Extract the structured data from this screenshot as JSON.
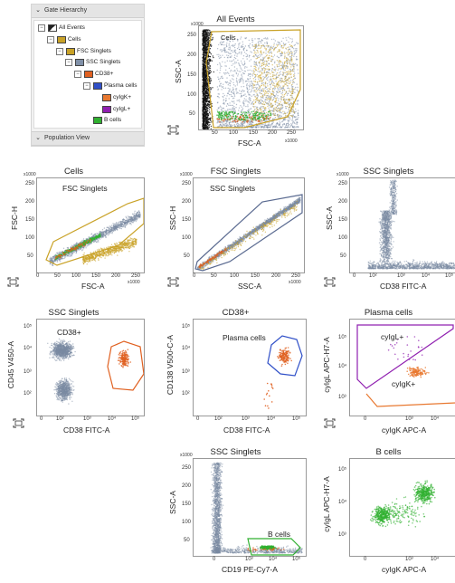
{
  "gate_hierarchy": {
    "header": "Gate Hierarchy",
    "footer": "Population View",
    "nodes": [
      {
        "label": "All Events",
        "color": "#222222",
        "depth": 0
      },
      {
        "label": "Cells",
        "color": "#c9a227",
        "depth": 1
      },
      {
        "label": "FSC Singlets",
        "color": "#c9a227",
        "depth": 2
      },
      {
        "label": "SSC Singlets",
        "color": "#8090a8",
        "depth": 3
      },
      {
        "label": "CD38+",
        "color": "#e06020",
        "depth": 4
      },
      {
        "label": "Plasma cells",
        "color": "#3050c8",
        "depth": 5
      },
      {
        "label": "cyIgK+",
        "color": "#e87830",
        "depth": 6
      },
      {
        "label": "cyIgL+",
        "color": "#9020b0",
        "depth": 6
      },
      {
        "label": "B cells",
        "color": "#30b030",
        "depth": 5
      }
    ]
  },
  "colors": {
    "events": "#7a8ba2",
    "cells": "#c9a227",
    "fsc": "#c9a227",
    "ssc": "#5a6a90",
    "cd38": "#e06020",
    "plasma": "#3050c8",
    "igl": "#9020b0",
    "igk": "#e87830",
    "bcells": "#30b030"
  },
  "plots": {
    "p1": {
      "title": "All Events",
      "xlabel": "FSC-A",
      "ylabel": "SSC-A",
      "gate": "Cells",
      "xticks": [
        "50",
        "100",
        "150",
        "200",
        "250"
      ],
      "yticks": [
        "50",
        "100",
        "150",
        "200",
        "250"
      ],
      "xmult": "x1000",
      "ymult": "x1000"
    },
    "p2": {
      "title": "Cells",
      "xlabel": "FSC-A",
      "ylabel": "FSC-H",
      "gate": "FSC Singlets",
      "xticks": [
        "0",
        "50",
        "100",
        "150",
        "200",
        "250"
      ],
      "yticks": [
        "50",
        "100",
        "150",
        "200",
        "250"
      ],
      "xmult": "x1000",
      "ymult": "x1000"
    },
    "p3": {
      "title": "FSC Singlets",
      "xlabel": "SSC-A",
      "ylabel": "SSC-H",
      "gate": "SSC Singlets",
      "xticks": [
        "0",
        "50",
        "100",
        "150",
        "200",
        "250"
      ],
      "yticks": [
        "50",
        "100",
        "150",
        "200",
        "250"
      ],
      "xmult": "x1000",
      "ymult": "x1000"
    },
    "p4": {
      "title": "SSC Singlets",
      "xlabel": "CD38 FITC-A",
      "ylabel": "SSC-A",
      "xticks": [
        "0",
        "10²",
        "10³",
        "10⁴",
        "10⁵"
      ],
      "yticks": [
        "50",
        "100",
        "150",
        "200",
        "250"
      ],
      "ymult": "x1000"
    },
    "p5": {
      "title": "SSC Singlets",
      "xlabel": "CD38 FITC-A",
      "ylabel": "CD45 V450-A",
      "gate": "CD38+",
      "xticks": [
        "0",
        "10²",
        "10³",
        "10⁴",
        "10⁵"
      ],
      "yticks": [
        "10²",
        "10³",
        "10⁴",
        "10⁵"
      ]
    },
    "p6": {
      "title": "CD38+",
      "xlabel": "CD38 FITC-A",
      "ylabel": "CD138 V500-C-A",
      "gate": "Plasma cells",
      "xticks": [
        "0",
        "10²",
        "10³",
        "10⁴",
        "10⁵"
      ],
      "yticks": [
        "10²",
        "10³",
        "10⁴",
        "10⁵"
      ]
    },
    "p7": {
      "title": "Plasma cells",
      "xlabel": "cyIgK APC-A",
      "ylabel": "cyIgL APC-H7-A",
      "gate": "cyIgL+",
      "gate2": "cyIgK+",
      "xticks": [
        "0",
        "10³",
        "10⁴"
      ],
      "yticks": [
        "10³",
        "10⁴",
        "10⁵"
      ]
    },
    "p8": {
      "title": "SSC Singlets",
      "xlabel": "CD19 PE-Cy7-A",
      "ylabel": "SSC-A",
      "gate": "B cells",
      "xticks": [
        "0",
        "10³",
        "10⁴",
        "10⁵"
      ],
      "yticks": [
        "50",
        "100",
        "150",
        "200",
        "250"
      ],
      "ymult": "x1000"
    },
    "p9": {
      "title": "B cells",
      "xlabel": "cyIgK APC-A",
      "ylabel": "cyIgL APC-H7-A",
      "xticks": [
        "0",
        "10³",
        "10⁴"
      ],
      "yticks": [
        "10³",
        "10⁴",
        "10⁵"
      ]
    }
  }
}
